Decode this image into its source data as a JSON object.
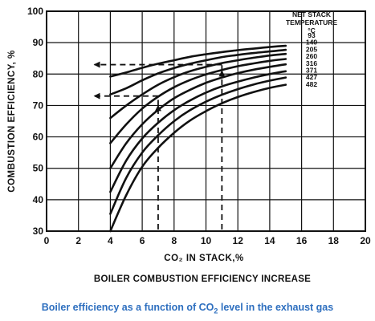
{
  "chart_data": {
    "type": "line",
    "title": "BOILER COMBUSTION EFFICIENCY INCREASE",
    "xlabel": "CO₂ IN STACK,%",
    "ylabel": "COMBUSTION EFFICIENCY, %",
    "xlim": [
      0,
      20
    ],
    "ylim": [
      30,
      100
    ],
    "x_ticks": [
      0,
      2,
      4,
      6,
      8,
      10,
      12,
      14,
      16,
      18,
      20
    ],
    "y_ticks": [
      30,
      40,
      50,
      60,
      70,
      80,
      90,
      100
    ],
    "grid": true,
    "legend_title": [
      "NET STACK",
      "TEMPERATURE",
      "°C"
    ],
    "series": [
      {
        "name": "93",
        "points": [
          [
            4,
            79.2
          ],
          [
            5,
            80.5
          ],
          [
            6,
            82.0
          ],
          [
            7,
            83.3
          ],
          [
            8,
            84.4
          ],
          [
            9,
            85.5
          ],
          [
            10,
            86.3
          ],
          [
            11,
            87.0
          ],
          [
            12,
            87.6
          ],
          [
            13,
            88.1
          ],
          [
            14,
            88.6
          ],
          [
            15,
            89.0
          ]
        ]
      },
      {
        "name": "149",
        "points": [
          [
            4,
            73.5
          ],
          [
            5,
            75.5
          ],
          [
            6,
            78.0
          ],
          [
            7,
            80.2
          ],
          [
            8,
            81.9
          ],
          [
            9,
            83.3
          ],
          [
            10,
            84.4
          ],
          [
            11,
            85.4
          ],
          [
            12,
            86.1
          ],
          [
            13,
            86.7
          ],
          [
            14,
            87.2
          ],
          [
            15,
            87.7
          ]
        ]
      },
      {
        "name": "205",
        "points": [
          [
            4,
            66.0
          ],
          [
            5,
            70.0
          ],
          [
            6,
            73.5
          ],
          [
            7,
            76.6
          ],
          [
            8,
            79.0
          ],
          [
            9,
            80.9
          ],
          [
            10,
            82.3
          ],
          [
            11,
            83.5
          ],
          [
            12,
            84.4
          ],
          [
            13,
            85.2
          ],
          [
            14,
            85.9
          ],
          [
            15,
            86.4
          ]
        ]
      },
      {
        "name": "260",
        "points": [
          [
            4,
            58.0
          ],
          [
            5,
            64.0
          ],
          [
            6,
            69.0
          ],
          [
            7,
            72.8
          ],
          [
            8,
            75.8
          ],
          [
            9,
            78.1
          ],
          [
            10,
            79.9
          ],
          [
            11,
            81.3
          ],
          [
            12,
            82.5
          ],
          [
            13,
            83.4
          ],
          [
            14,
            84.2
          ],
          [
            15,
            84.8
          ]
        ]
      },
      {
        "name": "316",
        "points": [
          [
            4,
            50.0
          ],
          [
            5,
            58.0
          ],
          [
            6,
            64.0
          ],
          [
            7,
            68.6
          ],
          [
            8,
            72.3
          ],
          [
            9,
            75.0
          ],
          [
            10,
            77.2
          ],
          [
            11,
            78.9
          ],
          [
            12,
            80.3
          ],
          [
            13,
            81.4
          ],
          [
            14,
            82.3
          ],
          [
            15,
            83.1
          ]
        ]
      },
      {
        "name": "371",
        "points": [
          [
            4,
            42.5
          ],
          [
            5,
            52.5
          ],
          [
            6,
            59.5
          ],
          [
            7,
            64.5
          ],
          [
            8,
            68.5
          ],
          [
            9,
            71.6
          ],
          [
            10,
            74.1
          ],
          [
            11,
            76.1
          ],
          [
            12,
            77.6
          ],
          [
            13,
            78.9
          ],
          [
            14,
            80.0
          ],
          [
            15,
            80.9
          ]
        ]
      },
      {
        "name": "427",
        "points": [
          [
            4,
            35.5
          ],
          [
            5,
            47.0
          ],
          [
            6,
            55.0
          ],
          [
            7,
            60.5
          ],
          [
            8,
            65.0
          ],
          [
            9,
            68.5
          ],
          [
            10,
            71.2
          ],
          [
            11,
            73.4
          ],
          [
            12,
            75.2
          ],
          [
            13,
            76.7
          ],
          [
            14,
            77.9
          ],
          [
            15,
            78.9
          ]
        ]
      },
      {
        "name": "482",
        "points": [
          [
            4,
            30.0
          ],
          [
            5,
            41.5
          ],
          [
            6,
            50.5
          ],
          [
            7,
            56.5
          ],
          [
            8,
            61.3
          ],
          [
            9,
            65.2
          ],
          [
            10,
            68.2
          ],
          [
            11,
            70.7
          ],
          [
            12,
            72.7
          ],
          [
            13,
            74.3
          ],
          [
            14,
            75.6
          ],
          [
            15,
            76.6
          ]
        ]
      }
    ],
    "annotations": [
      {
        "type": "dashed-arrow",
        "from": [
          7,
          70.0
        ],
        "horizontal_to_x": 3,
        "level": 73
      },
      {
        "type": "dashed-arrow",
        "from": [
          11,
          81.0
        ],
        "horizontal_to_x": 3,
        "level": 83
      }
    ],
    "caption": {
      "pre": "Boiler efficiency as a function of CO",
      "sub": "2",
      "post": " level in the exhaust gas"
    }
  }
}
